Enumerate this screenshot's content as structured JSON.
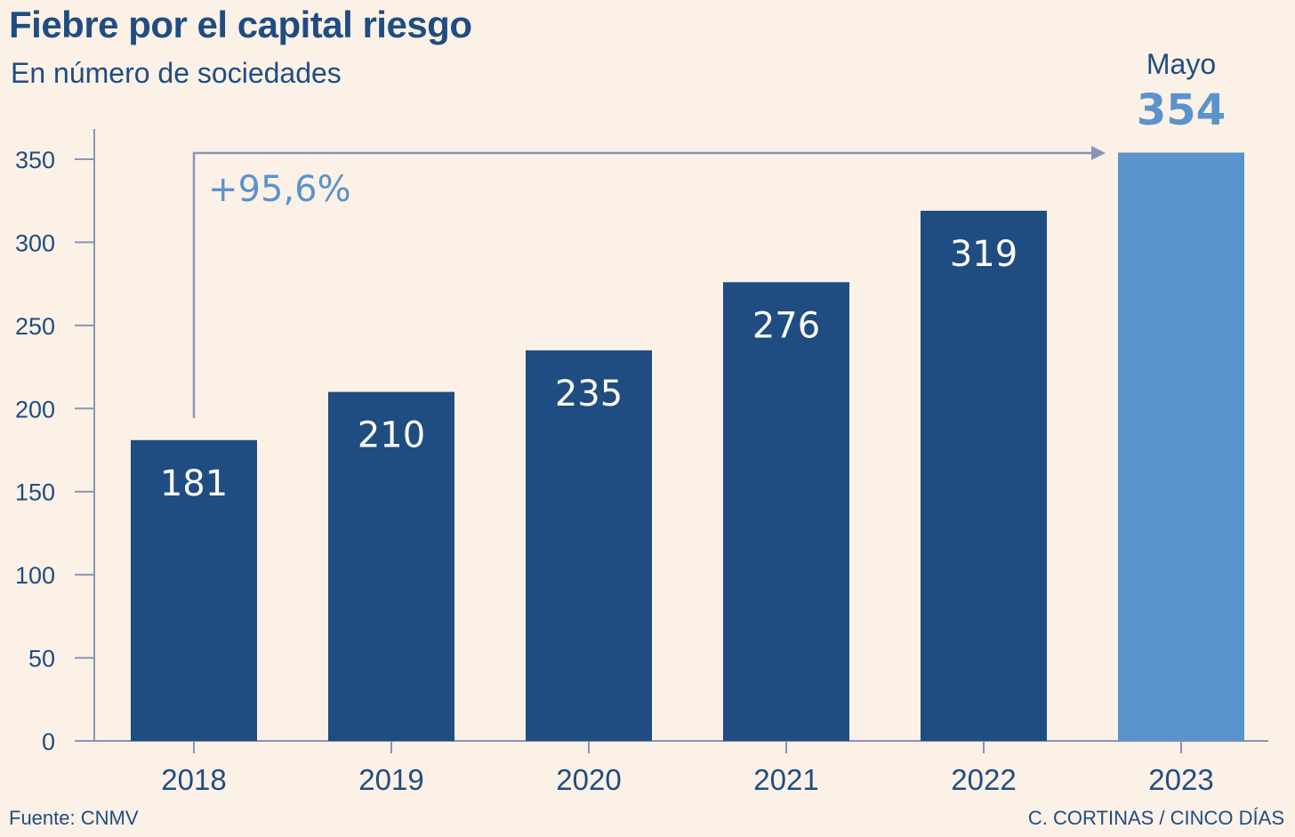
{
  "header": {
    "title": "Fiebre por el capital riesgo",
    "subtitle": "En número de sociedades"
  },
  "footer": {
    "source": "Fuente: CNMV",
    "credit": "C. CORTINAS / CINCO DÍAS"
  },
  "annotations": {
    "growth": "+95,6%",
    "highlight_label": "Mayo",
    "highlight_value": "354"
  },
  "colors": {
    "bar": "#1f4d82",
    "highlight_bar": "#5b93cc",
    "axis": "#8a93b8",
    "background": "#fcf1e7"
  },
  "chart_data": {
    "type": "bar",
    "title": "Fiebre por el capital riesgo",
    "subtitle": "En número de sociedades",
    "xlabel": "",
    "ylabel": "",
    "categories": [
      "2018",
      "2019",
      "2020",
      "2021",
      "2022",
      "2023"
    ],
    "values": [
      181,
      210,
      235,
      276,
      319,
      354
    ],
    "data_labels": [
      "181",
      "210",
      "235",
      "276",
      "319",
      "354"
    ],
    "highlight_index": 5,
    "ylim": [
      0,
      350
    ],
    "yticks": [
      0,
      50,
      100,
      150,
      200,
      250,
      300,
      350
    ],
    "grid": false,
    "legend": "none"
  }
}
